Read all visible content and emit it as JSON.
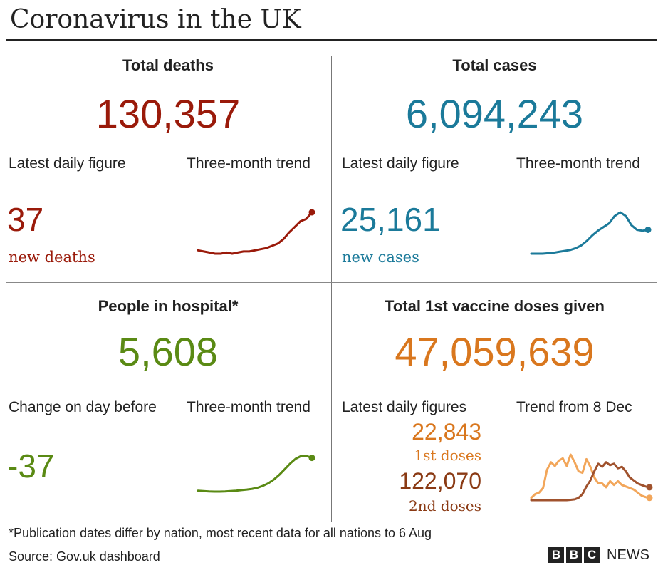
{
  "title": "Coronavirus in the UK",
  "panels": {
    "deaths": {
      "heading": "Total deaths",
      "total": "130,357",
      "latest_label": "Latest daily figure",
      "trend_label": "Three-month trend",
      "daily_value": "37",
      "daily_sub": "new deaths",
      "color": "#9a1a0a"
    },
    "cases": {
      "heading": "Total cases",
      "total": "6,094,243",
      "latest_label": "Latest daily figure",
      "trend_label": "Three-month trend",
      "daily_value": "25,161",
      "daily_sub": "new cases",
      "color": "#1b7a9a"
    },
    "hospital": {
      "heading": "People in hospital*",
      "total": "5,608",
      "latest_label": "Change on day before",
      "trend_label": "Three-month trend",
      "daily_value": "-37",
      "color": "#5a8a14"
    },
    "vaccine": {
      "heading": "Total 1st vaccine doses given",
      "total": "47,059,639",
      "latest_label": "Latest daily figures",
      "trend_label": "Trend from 8 Dec",
      "first_value": "22,843",
      "first_sub": "1st doses",
      "second_value": "122,070",
      "second_sub": "2nd doses",
      "color_first": "#d9771e",
      "color_second": "#8a3a14",
      "color_first_line": "#f2a65a",
      "color_second_line": "#a0522d"
    }
  },
  "footnote": "*Publication dates differ by nation, most recent data for all nations to 6 Aug",
  "source": "Source: Gov.uk dashboard",
  "brand": {
    "letters": [
      "B",
      "B",
      "C"
    ],
    "news": "NEWS"
  },
  "chart_data": [
    {
      "type": "line",
      "series": [
        {
          "values": [
            12,
            11,
            10,
            9,
            9,
            10,
            9,
            10,
            11,
            11,
            12,
            13,
            14,
            16,
            18,
            22,
            28,
            33,
            38,
            40,
            46
          ]
        }
      ]
    },
    {
      "type": "line",
      "series": [
        {
          "values": [
            2,
            2,
            2,
            2.5,
            3,
            4,
            5,
            6,
            8,
            11,
            16,
            22,
            27,
            31,
            35,
            43,
            47,
            43,
            33,
            28,
            27,
            28
          ]
        }
      ]
    },
    {
      "type": "line",
      "series": [
        {
          "values": [
            1,
            0.8,
            0.6,
            0.5,
            0.5,
            0.6,
            0.8,
            1,
            1.3,
            1.6,
            2,
            2.6,
            3.6,
            5,
            7,
            9.5,
            12.5,
            15.5,
            18,
            19.5,
            19.5,
            18.5
          ]
        }
      ]
    },
    {
      "type": "line",
      "series": [
        {
          "values": [
            3,
            8,
            10,
            16,
            40,
            50,
            45,
            52,
            55,
            45,
            60,
            50,
            38,
            36,
            54,
            44,
            30,
            22,
            22,
            17,
            25,
            20,
            25,
            20,
            18,
            16,
            14,
            10,
            6,
            4,
            3
          ]
        },
        {
          "values": [
            0,
            0,
            0,
            0,
            0,
            0,
            0,
            0,
            0,
            0,
            0.5,
            1,
            3,
            8,
            18,
            26,
            38,
            48,
            44,
            50,
            46,
            48,
            42,
            44,
            38,
            30,
            26,
            22,
            20,
            18,
            17
          ]
        }
      ]
    }
  ]
}
